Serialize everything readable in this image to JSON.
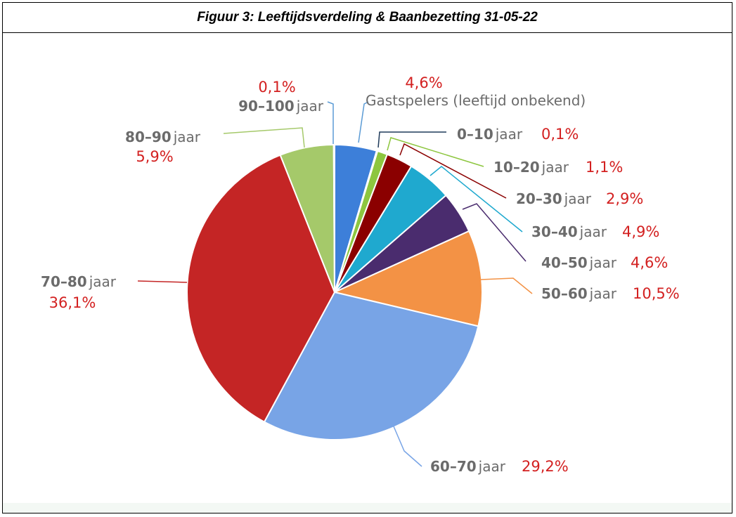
{
  "title": "Figuur 3: Leeftijdsverdeling & Baanbezetting 31-05-22",
  "chart_data": {
    "type": "pie",
    "title": "Figuur 3: Leeftijdsverdeling & Baanbezetting 31-05-22",
    "slices": [
      {
        "label": "Gastspelers (leeftijd onbekend)",
        "value": 4.6,
        "value_label": "4,6%",
        "color": "#3d7fd9"
      },
      {
        "label": "0–10",
        "unit": "jaar",
        "value": 0.1,
        "value_label": "0,1%",
        "color": "#1f3a5a"
      },
      {
        "label": "10–20",
        "unit": "jaar",
        "value": 1.1,
        "value_label": "1,1%",
        "color": "#8dc63f"
      },
      {
        "label": "20–30",
        "unit": "jaar",
        "value": 2.9,
        "value_label": "2,9%",
        "color": "#8b0000"
      },
      {
        "label": "30–40",
        "unit": "jaar",
        "value": 4.9,
        "value_label": "4,9%",
        "color": "#1fa9cf"
      },
      {
        "label": "40–50",
        "unit": "jaar",
        "value": 4.6,
        "value_label": "4,6%",
        "color": "#4a2c6e"
      },
      {
        "label": "50–60",
        "unit": "jaar",
        "value": 10.5,
        "value_label": "10,5%",
        "color": "#f39245"
      },
      {
        "label": "60–70",
        "unit": "jaar",
        "value": 29.2,
        "value_label": "29,2%",
        "color": "#78a4e6"
      },
      {
        "label": "70–80",
        "unit": "jaar",
        "value": 36.1,
        "value_label": "36,1%",
        "color": "#c42525"
      },
      {
        "label": "80–90",
        "unit": "jaar",
        "value": 5.9,
        "value_label": "5,9%",
        "color": "#a5c96a"
      },
      {
        "label": "90–100",
        "unit": "jaar",
        "value": 0.1,
        "value_label": "0,1%",
        "color": "#3d7fd9"
      }
    ],
    "label_color": "#6b6b6b",
    "value_color": "#d32020"
  }
}
